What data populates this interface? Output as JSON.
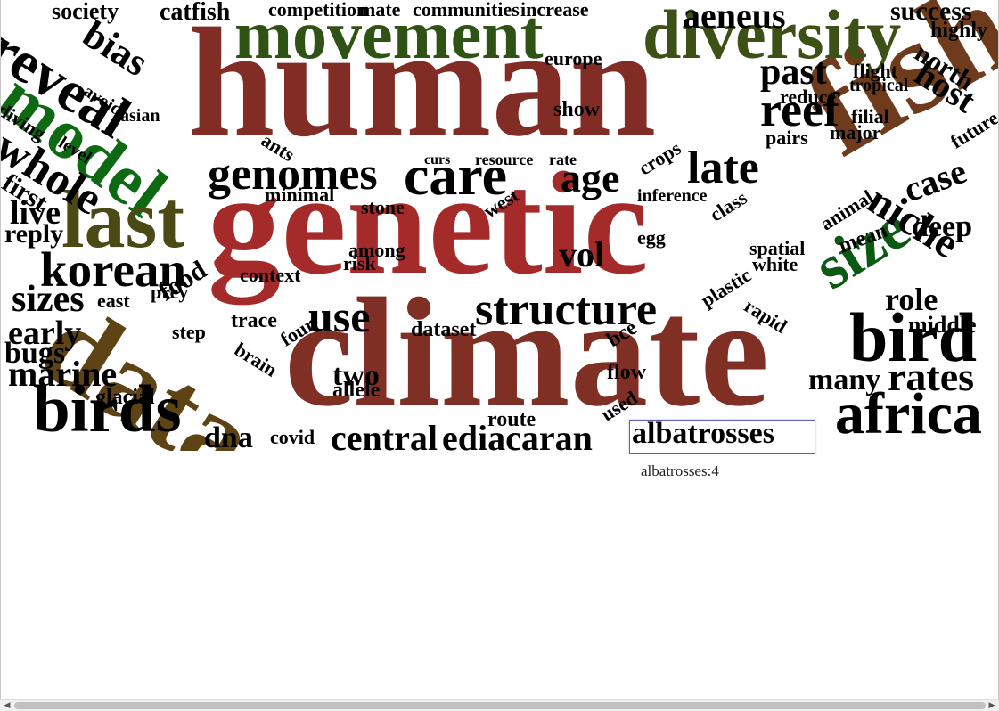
{
  "tooltip": {
    "word": "albatrosses",
    "count": "albatrosses:4"
  },
  "colors": {
    "dark_red": "#7f2b22",
    "brown": "#6b3a1c",
    "olive": "#4c4a14",
    "dark_green": "#2f5314",
    "green": "#0e6a12",
    "black": "#000000"
  },
  "words": [
    {
      "t": "human",
      "c": "#812d25"
    },
    {
      "t": "genetic",
      "c": "#a52a2a"
    },
    {
      "t": "climate",
      "c": "#7f2f24"
    },
    {
      "t": "data",
      "c": "#5e4314"
    },
    {
      "t": "fish",
      "c": "#6e3c1c"
    },
    {
      "t": "movement",
      "c": "#2f5314"
    },
    {
      "t": "diversity",
      "c": "#3d5016"
    },
    {
      "t": "model",
      "c": "#0e6a12"
    },
    {
      "t": "last",
      "c": "#4c4a14"
    },
    {
      "t": "size",
      "c": "#0b5a13"
    },
    {
      "t": "birds",
      "c": "#000"
    },
    {
      "t": "bird",
      "c": "#000"
    },
    {
      "t": "africa",
      "c": "#000"
    },
    {
      "t": "reveal",
      "c": "#000"
    },
    {
      "t": "whole",
      "c": "#000"
    },
    {
      "t": "korean",
      "c": "#000"
    },
    {
      "t": "genomes",
      "c": "#000"
    },
    {
      "t": "care",
      "c": "#000"
    },
    {
      "t": "age",
      "c": "#000"
    },
    {
      "t": "late",
      "c": "#000"
    },
    {
      "t": "reef",
      "c": "#000"
    },
    {
      "t": "past",
      "c": "#000"
    },
    {
      "t": "structure",
      "c": "#000"
    },
    {
      "t": "use",
      "c": "#000"
    },
    {
      "t": "niche",
      "c": "#000"
    },
    {
      "t": "rates",
      "c": "#000"
    },
    {
      "t": "marine",
      "c": "#000"
    },
    {
      "t": "sizes",
      "c": "#000"
    },
    {
      "t": "early",
      "c": "#000"
    },
    {
      "t": "central",
      "c": "#000"
    },
    {
      "t": "ediacaran",
      "c": "#000"
    },
    {
      "t": "dna",
      "c": "#000"
    },
    {
      "t": "bias",
      "c": "#000"
    },
    {
      "t": "host",
      "c": "#000"
    },
    {
      "t": "aeneus",
      "c": "#000"
    },
    {
      "t": "success",
      "c": "#000"
    },
    {
      "t": "catfish",
      "c": "#000"
    },
    {
      "t": "competition",
      "c": "#000"
    },
    {
      "t": "mate",
      "c": "#000"
    },
    {
      "t": "communities",
      "c": "#000"
    },
    {
      "t": "increase",
      "c": "#000"
    },
    {
      "t": "society",
      "c": "#000"
    },
    {
      "t": "case",
      "c": "#000"
    },
    {
      "t": "deep",
      "c": "#000"
    },
    {
      "t": "role",
      "c": "#000"
    },
    {
      "t": "many",
      "c": "#000"
    },
    {
      "t": "two",
      "c": "#000"
    },
    {
      "t": "vol",
      "c": "#000"
    },
    {
      "t": "live",
      "c": "#000"
    },
    {
      "t": "reply",
      "c": "#000"
    },
    {
      "t": "first",
      "c": "#000"
    },
    {
      "t": "food",
      "c": "#000"
    },
    {
      "t": "bugs",
      "c": "#000"
    },
    {
      "t": "glacial",
      "c": "#000"
    },
    {
      "t": "trace",
      "c": "#000"
    },
    {
      "t": "dataset",
      "c": "#000"
    },
    {
      "t": "allele",
      "c": "#000"
    },
    {
      "t": "flow",
      "c": "#000"
    },
    {
      "t": "route",
      "c": "#000"
    },
    {
      "t": "covid",
      "c": "#000"
    },
    {
      "t": "used",
      "c": "#000"
    },
    {
      "t": "albatrosses",
      "c": "#000"
    },
    {
      "t": "middle",
      "c": "#000"
    },
    {
      "t": "north",
      "c": "#000"
    },
    {
      "t": "highly",
      "c": "#000"
    },
    {
      "t": "future",
      "c": "#000"
    },
    {
      "t": "flight",
      "c": "#000"
    },
    {
      "t": "tropical",
      "c": "#000"
    },
    {
      "t": "filial",
      "c": "#000"
    },
    {
      "t": "major",
      "c": "#000"
    },
    {
      "t": "pairs",
      "c": "#000"
    },
    {
      "t": "reduce",
      "c": "#000"
    },
    {
      "t": "show",
      "c": "#000"
    },
    {
      "t": "europe",
      "c": "#000"
    },
    {
      "t": "curs",
      "c": "#000"
    },
    {
      "t": "resource",
      "c": "#000"
    },
    {
      "t": "rate",
      "c": "#000"
    },
    {
      "t": "minimal",
      "c": "#000"
    },
    {
      "t": "stone",
      "c": "#000"
    },
    {
      "t": "inference",
      "c": "#000"
    },
    {
      "t": "crops",
      "c": "#000"
    },
    {
      "t": "class",
      "c": "#000"
    },
    {
      "t": "spatial",
      "c": "#000"
    },
    {
      "t": "white",
      "c": "#000"
    },
    {
      "t": "animal",
      "c": "#000"
    },
    {
      "t": "mean",
      "c": "#000"
    },
    {
      "t": "plastic",
      "c": "#000"
    },
    {
      "t": "rapid",
      "c": "#000"
    },
    {
      "t": "among",
      "c": "#000"
    },
    {
      "t": "risk",
      "c": "#000"
    },
    {
      "t": "context",
      "c": "#000"
    },
    {
      "t": "prey",
      "c": "#000"
    },
    {
      "t": "east",
      "c": "#000"
    },
    {
      "t": "step",
      "c": "#000"
    },
    {
      "t": "brain",
      "c": "#000"
    },
    {
      "t": "four",
      "c": "#000"
    },
    {
      "t": "ants",
      "c": "#000"
    },
    {
      "t": "asian",
      "c": "#000"
    },
    {
      "t": "diving",
      "c": "#000"
    },
    {
      "t": "avoid",
      "c": "#000"
    },
    {
      "t": "level",
      "c": "#000"
    },
    {
      "t": "egg",
      "c": "#000"
    },
    {
      "t": "bce",
      "c": "#000"
    },
    {
      "t": "west",
      "c": "#000"
    }
  ]
}
